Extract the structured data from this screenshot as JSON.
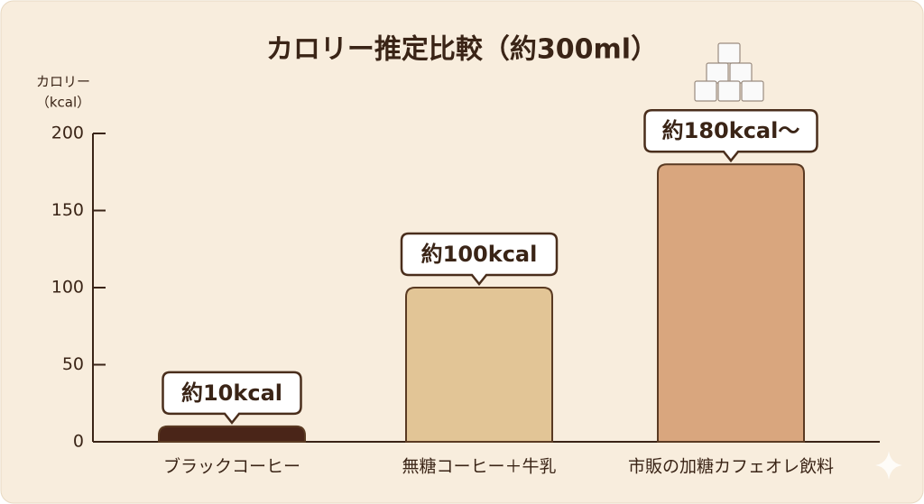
{
  "chart_data": {
    "type": "bar",
    "title": "カロリー推定比較（約300ml）",
    "ylabel": [
      "カロリー",
      "（kcal）"
    ],
    "categories": [
      "ブラックコーヒー",
      "無糖コーヒー＋牛乳",
      "市販の加糖カフェオレ飲料"
    ],
    "values": [
      10,
      100,
      180
    ],
    "value_labels": [
      "約10kcal",
      "約100kcal",
      "約180kcal〜"
    ],
    "colors": [
      "#4a2518",
      "#e2c596",
      "#d9a67e"
    ],
    "ylim": [
      0,
      200
    ],
    "yticks": [
      0,
      50,
      100,
      150,
      200
    ],
    "grid": false
  }
}
